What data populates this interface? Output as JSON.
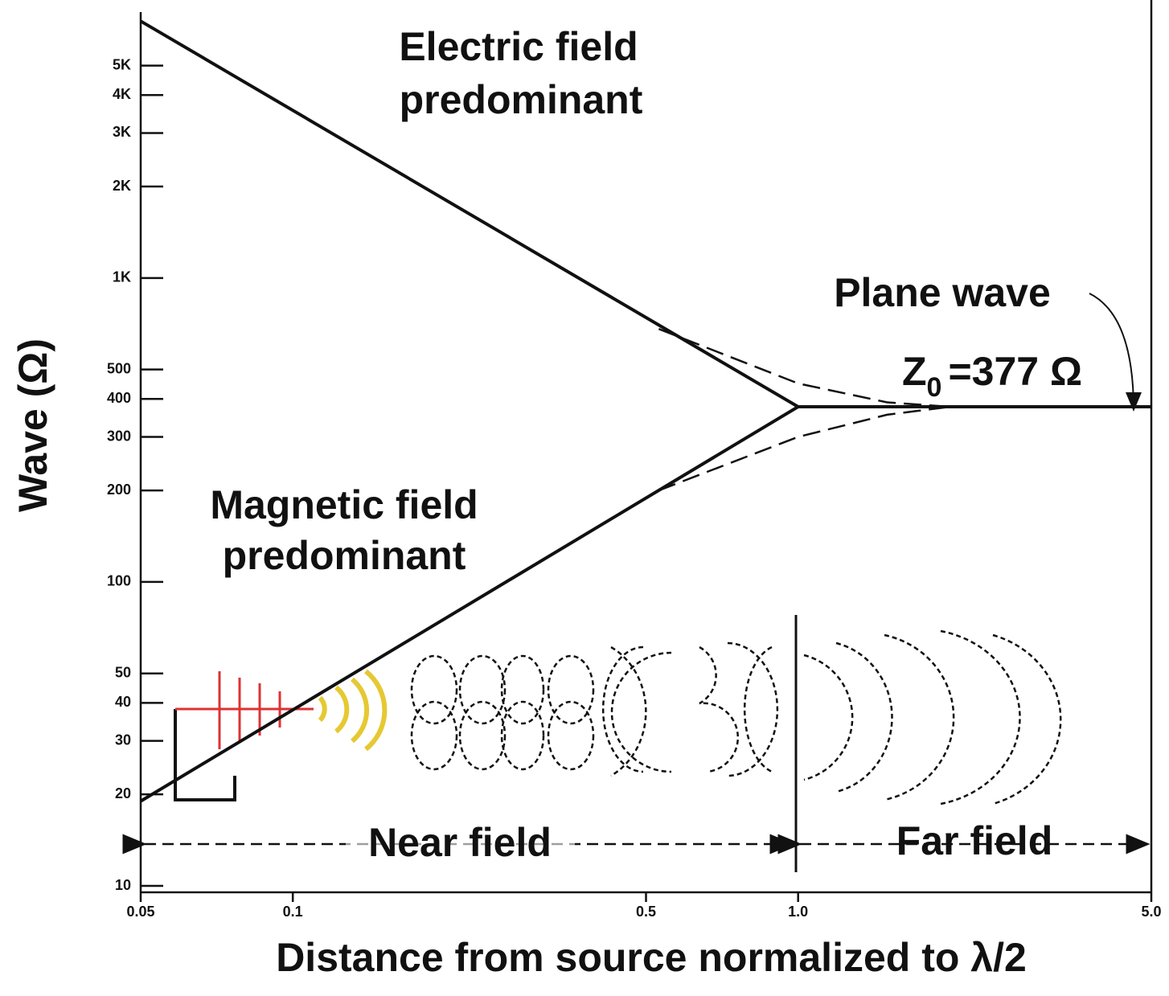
{
  "chart_data": {
    "type": "line",
    "xlabel": "Distance from source normalized to  λ/2",
    "ylabel": "Wave  (Ω)",
    "log_x": true,
    "log_y": true,
    "xlim": [
      0.05,
      5.0
    ],
    "ylim": [
      10,
      7500
    ],
    "xticks": [
      0.05,
      0.1,
      0.5,
      {
        "value": 1,
        "label": "1.0"
      },
      {
        "value": 5,
        "label": "5.0"
      }
    ],
    "yticks": [
      10,
      20,
      30,
      40,
      50,
      100,
      200,
      300,
      400,
      500,
      {
        "value": 1000,
        "label": "1K"
      },
      {
        "value": 2000,
        "label": "2K"
      },
      {
        "value": 3000,
        "label": "3K"
      },
      {
        "value": 4000,
        "label": "4K"
      },
      {
        "value": 5000,
        "label": "5K"
      }
    ],
    "series": [
      {
        "color": "#111111",
        "dashed": false,
        "x": [
          0.05,
          1.0,
          5.0
        ],
        "values": [
          7000,
          377,
          377
        ]
      },
      {
        "color": "#111111",
        "dashed": false,
        "x": [
          0.05,
          1.0
        ],
        "values": [
          19,
          377
        ]
      },
      {
        "color": "#111111",
        "dashed": true,
        "x": [
          0.53,
          1.0,
          1.5,
          2.0
        ],
        "values": [
          680,
          450,
          390,
          377
        ]
      },
      {
        "color": "#111111",
        "dashed": true,
        "x": [
          0.53,
          1.0,
          1.5,
          2.0
        ],
        "values": [
          200,
          300,
          355,
          377
        ]
      }
    ],
    "annotations": {
      "electric": [
        "Electric field",
        "predominant"
      ],
      "magnetic": [
        "Magnetic field",
        "predominant"
      ],
      "plane_wave": "Plane wave",
      "z0": {
        "symbol": "Z",
        "subscript": "0",
        "text": "=377 Ω"
      },
      "near_field": "Near field",
      "far_field": "Far field"
    }
  }
}
